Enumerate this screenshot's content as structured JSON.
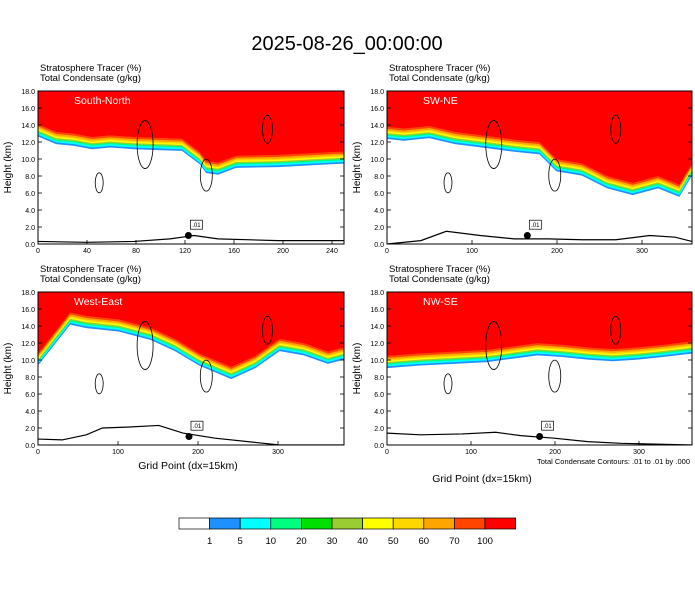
{
  "title": "2025-08-26_00:00:00",
  "panel_header": {
    "line1": "Stratosphere Tracer   (%)",
    "line2": "Total Condensate   (g/kg)"
  },
  "ylabel": "Height (km)",
  "xlabel": "Grid Point (dx=15km)",
  "contour_note": "Total Condensate Contours: .01 to .01 by .000",
  "colors": {
    "levels": [
      "#ffffff",
      "#1e90ff",
      "#00ffff",
      "#00ff7f",
      "#00e000",
      "#9acd32",
      "#ffff00",
      "#ffd700",
      "#ffa500",
      "#ff4500",
      "#ff0000"
    ],
    "contour": "#000000",
    "terrain": "#000000"
  },
  "chart_data": [
    {
      "type": "heatmap",
      "label": "South-North",
      "xticks": [
        "0",
        "40",
        "80",
        "120",
        "160",
        "200",
        "240"
      ],
      "xlim": [
        0,
        255
      ],
      "yticks": [
        "0.0",
        "2.0",
        "4.0",
        "6.0",
        "8.0",
        "10.0",
        "12.0",
        "14.0",
        "16.0",
        "18.0"
      ],
      "ylim": [
        0,
        18
      ],
      "tropopause_km": [
        [
          0,
          14.1
        ],
        [
          15,
          13.2
        ],
        [
          30,
          13.0
        ],
        [
          45,
          12.6
        ],
        [
          60,
          12.8
        ],
        [
          80,
          12.6
        ],
        [
          100,
          12.5
        ],
        [
          120,
          12.4
        ],
        [
          135,
          10.8
        ],
        [
          140,
          9.8
        ],
        [
          150,
          9.6
        ],
        [
          165,
          10.4
        ],
        [
          200,
          10.5
        ],
        [
          240,
          10.8
        ],
        [
          255,
          10.9
        ]
      ],
      "condensate_label": ".01"
    },
    {
      "type": "heatmap",
      "label": "SW-NE",
      "xticks": [
        "0",
        "100",
        "200",
        "300"
      ],
      "xlim": [
        0,
        360
      ],
      "yticks": [
        "0.0",
        "2.0",
        "4.0",
        "6.0",
        "8.0",
        "10.0",
        "12.0",
        "14.0",
        "16.0",
        "18.0"
      ],
      "ylim": [
        0,
        18
      ],
      "tropopause_km": [
        [
          0,
          13.8
        ],
        [
          20,
          13.6
        ],
        [
          50,
          13.9
        ],
        [
          80,
          13.2
        ],
        [
          120,
          12.7
        ],
        [
          150,
          12.3
        ],
        [
          180,
          12.0
        ],
        [
          200,
          10.0
        ],
        [
          230,
          9.5
        ],
        [
          260,
          8.0
        ],
        [
          290,
          7.2
        ],
        [
          320,
          8.0
        ],
        [
          345,
          7.0
        ],
        [
          360,
          9.5
        ]
      ],
      "condensate_label": ".01"
    },
    {
      "type": "heatmap",
      "label": "West-East",
      "xticks": [
        "0",
        "100",
        "200",
        "300"
      ],
      "xlim": [
        0,
        380
      ],
      "yticks": [
        "0.0",
        "2.0",
        "4.0",
        "6.0",
        "8.0",
        "10.0",
        "12.0",
        "14.0",
        "16.0",
        "18.0"
      ],
      "ylim": [
        0,
        18
      ],
      "tropopause_km": [
        [
          0,
          10.8
        ],
        [
          40,
          15.6
        ],
        [
          60,
          15.2
        ],
        [
          100,
          14.8
        ],
        [
          140,
          13.8
        ],
        [
          170,
          12.5
        ],
        [
          200,
          10.8
        ],
        [
          240,
          9.2
        ],
        [
          270,
          10.5
        ],
        [
          300,
          12.5
        ],
        [
          330,
          12.0
        ],
        [
          360,
          11.0
        ],
        [
          380,
          11.5
        ]
      ],
      "condensate_label": ".01"
    },
    {
      "type": "heatmap",
      "label": "NW-SE",
      "xticks": [
        "0",
        "100",
        "200",
        "300"
      ],
      "xlim": [
        0,
        365
      ],
      "yticks": [
        "0.0",
        "2.0",
        "4.0",
        "6.0",
        "8.0",
        "10.0",
        "12.0",
        "14.0",
        "16.0",
        "18.0"
      ],
      "ylim": [
        0,
        18
      ],
      "tropopause_km": [
        [
          0,
          10.5
        ],
        [
          40,
          10.8
        ],
        [
          80,
          11.0
        ],
        [
          120,
          11.2
        ],
        [
          150,
          11.6
        ],
        [
          180,
          12.0
        ],
        [
          210,
          11.8
        ],
        [
          240,
          11.5
        ],
        [
          270,
          11.3
        ],
        [
          300,
          11.5
        ],
        [
          330,
          11.8
        ],
        [
          365,
          12.2
        ]
      ],
      "condensate_label": ".01"
    }
  ],
  "colorbar": {
    "labels": [
      "1",
      "5",
      "10",
      "20",
      "30",
      "40",
      "50",
      "60",
      "70",
      "100"
    ]
  }
}
